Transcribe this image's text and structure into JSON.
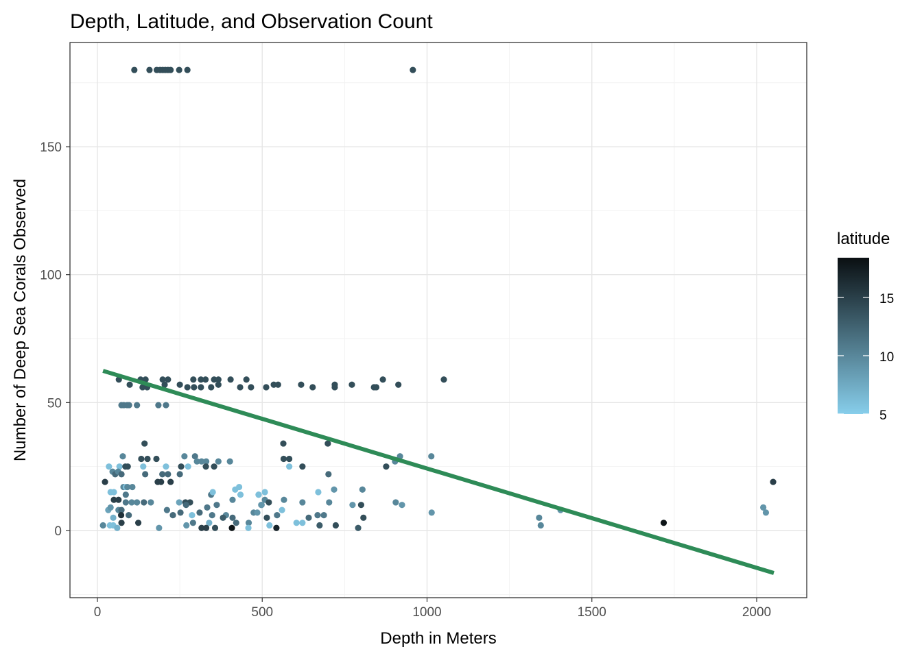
{
  "chart_data": {
    "type": "scatter",
    "title": "Depth, Latitude, and Observation Count",
    "xlabel": "Depth in Meters",
    "ylabel": "Number of Deep Sea Corals Observed",
    "xlim": [
      -80,
      2150
    ],
    "ylim": [
      -26,
      185
    ],
    "x_ticks": [
      0,
      500,
      1000,
      1500,
      2000
    ],
    "y_ticks": [
      0,
      50,
      100,
      150
    ],
    "grid": true,
    "legend": {
      "title": "latitude",
      "placement": "right",
      "ticks": [
        5,
        10,
        15
      ],
      "range": [
        5,
        18.4
      ],
      "low_color": "#87CEEB",
      "high_color": "#0A0F12"
    },
    "trend_line": {
      "color": "#2E8B57",
      "x": [
        17,
        2052
      ],
      "y": [
        62.4,
        -16.6
      ]
    },
    "points_columns": [
      "depth",
      "count",
      "latitude"
    ],
    "points": [
      [
        112,
        180,
        14
      ],
      [
        158,
        180,
        14
      ],
      [
        180,
        180,
        14
      ],
      [
        190,
        180,
        14
      ],
      [
        198,
        180,
        14
      ],
      [
        206,
        180,
        14
      ],
      [
        214,
        180,
        14
      ],
      [
        222,
        180,
        14
      ],
      [
        248,
        180,
        14
      ],
      [
        273,
        180,
        14
      ],
      [
        957,
        180,
        14
      ],
      [
        65,
        59,
        14
      ],
      [
        98,
        57,
        14
      ],
      [
        131,
        59,
        14
      ],
      [
        146,
        59,
        14
      ],
      [
        137,
        56,
        14
      ],
      [
        151,
        56,
        14
      ],
      [
        198,
        59,
        14
      ],
      [
        214,
        59,
        14
      ],
      [
        204,
        57,
        14
      ],
      [
        250,
        57,
        14
      ],
      [
        273,
        56,
        14
      ],
      [
        291,
        59,
        14
      ],
      [
        293,
        56,
        14
      ],
      [
        314,
        59,
        14
      ],
      [
        328,
        59,
        14
      ],
      [
        314,
        56,
        14
      ],
      [
        345,
        56,
        14
      ],
      [
        354,
        59,
        14
      ],
      [
        367,
        59,
        14
      ],
      [
        367,
        57,
        14
      ],
      [
        404,
        59,
        14
      ],
      [
        433,
        56,
        14
      ],
      [
        452,
        59,
        14
      ],
      [
        466,
        56,
        14
      ],
      [
        512,
        56,
        14
      ],
      [
        535,
        57,
        14
      ],
      [
        548,
        57,
        14
      ],
      [
        618,
        57,
        14
      ],
      [
        653,
        56,
        14
      ],
      [
        720,
        57,
        14
      ],
      [
        720,
        56,
        14
      ],
      [
        772,
        57,
        14
      ],
      [
        839,
        56,
        14
      ],
      [
        846,
        56,
        14
      ],
      [
        866,
        59,
        14
      ],
      [
        913,
        57,
        14
      ],
      [
        1051,
        59,
        14
      ],
      [
        73,
        49,
        11
      ],
      [
        80,
        49,
        11
      ],
      [
        90,
        49,
        11
      ],
      [
        96,
        49,
        11
      ],
      [
        120,
        49,
        11
      ],
      [
        185,
        49,
        11
      ],
      [
        208,
        49,
        11
      ],
      [
        143,
        34,
        14
      ],
      [
        77,
        29,
        10
      ],
      [
        133,
        28,
        14
      ],
      [
        152,
        28,
        14
      ],
      [
        179,
        28,
        14
      ],
      [
        35,
        25,
        6
      ],
      [
        67,
        25,
        6
      ],
      [
        85,
        25,
        14
      ],
      [
        92,
        25,
        14
      ],
      [
        139,
        25,
        6
      ],
      [
        208,
        25,
        6
      ],
      [
        254,
        25,
        14
      ],
      [
        275,
        25,
        6
      ],
      [
        264,
        29,
        10
      ],
      [
        296,
        29,
        11
      ],
      [
        302,
        27,
        10
      ],
      [
        316,
        27,
        10
      ],
      [
        330,
        27,
        10
      ],
      [
        329,
        25,
        14
      ],
      [
        354,
        25,
        14
      ],
      [
        367,
        27,
        10
      ],
      [
        402,
        27,
        10
      ],
      [
        46,
        23,
        10
      ],
      [
        54,
        22,
        12
      ],
      [
        63,
        23,
        10
      ],
      [
        73,
        22,
        12
      ],
      [
        145,
        22,
        12
      ],
      [
        197,
        22,
        12
      ],
      [
        214,
        22,
        12
      ],
      [
        250,
        22,
        12
      ],
      [
        23,
        19,
        15
      ],
      [
        183,
        19,
        15
      ],
      [
        193,
        19,
        15
      ],
      [
        222,
        19,
        15
      ],
      [
        564,
        34,
        14
      ],
      [
        699,
        34,
        14
      ],
      [
        565,
        28,
        14
      ],
      [
        582,
        28,
        14
      ],
      [
        582,
        25,
        6
      ],
      [
        622,
        25,
        14
      ],
      [
        701,
        22,
        12
      ],
      [
        876,
        25,
        14
      ],
      [
        903,
        27,
        10
      ],
      [
        918,
        29,
        10
      ],
      [
        1013,
        29,
        10
      ],
      [
        2050,
        19,
        15
      ],
      [
        40,
        15,
        6
      ],
      [
        50,
        15,
        6
      ],
      [
        79,
        17,
        10
      ],
      [
        86,
        17,
        6
      ],
      [
        91,
        17,
        10
      ],
      [
        106,
        17,
        10
      ],
      [
        86,
        14,
        11
      ],
      [
        345,
        14,
        11
      ],
      [
        350,
        15,
        6
      ],
      [
        418,
        16,
        6
      ],
      [
        430,
        17,
        6
      ],
      [
        434,
        14,
        6
      ],
      [
        489,
        14,
        6
      ],
      [
        50,
        12,
        15
      ],
      [
        64,
        12,
        15
      ],
      [
        86,
        11,
        11
      ],
      [
        104,
        11,
        10
      ],
      [
        120,
        11,
        10
      ],
      [
        141,
        11,
        12
      ],
      [
        162,
        11,
        10
      ],
      [
        248,
        11,
        8
      ],
      [
        267,
        11,
        14
      ],
      [
        281,
        11,
        14
      ],
      [
        269,
        10,
        12
      ],
      [
        410,
        12,
        10
      ],
      [
        362,
        10,
        11
      ],
      [
        333,
        9,
        11
      ],
      [
        498,
        10,
        10
      ],
      [
        33,
        8,
        8
      ],
      [
        40,
        9,
        9
      ],
      [
        64,
        8,
        10
      ],
      [
        73,
        8,
        12
      ],
      [
        211,
        8,
        11
      ],
      [
        252,
        7,
        12
      ],
      [
        229,
        6,
        12
      ],
      [
        72,
        6,
        16
      ],
      [
        95,
        6,
        12
      ],
      [
        287,
        6,
        6
      ],
      [
        310,
        7,
        12
      ],
      [
        348,
        6,
        11
      ],
      [
        390,
        6,
        10
      ],
      [
        474,
        7,
        10
      ],
      [
        381,
        5,
        13
      ],
      [
        410,
        5,
        12
      ],
      [
        48,
        5,
        7
      ],
      [
        73,
        3,
        15
      ],
      [
        124,
        3,
        15
      ],
      [
        290,
        3,
        11
      ],
      [
        339,
        3,
        7
      ],
      [
        421,
        3,
        12
      ],
      [
        459,
        3,
        10
      ],
      [
        17,
        2,
        10
      ],
      [
        38,
        2,
        6
      ],
      [
        48,
        2,
        6
      ],
      [
        60,
        1,
        7
      ],
      [
        187,
        1,
        9
      ],
      [
        270,
        2,
        9
      ],
      [
        316,
        1,
        15
      ],
      [
        330,
        1,
        15
      ],
      [
        357,
        1,
        14
      ],
      [
        408,
        1,
        18
      ],
      [
        458,
        1,
        6
      ],
      [
        489,
        14,
        6
      ],
      [
        508,
        15,
        6
      ],
      [
        508,
        12,
        10
      ],
      [
        520,
        11,
        14
      ],
      [
        497,
        10,
        9
      ],
      [
        566,
        12,
        10
      ],
      [
        622,
        11,
        10
      ],
      [
        670,
        15,
        6
      ],
      [
        718,
        16,
        9
      ],
      [
        804,
        16,
        10
      ],
      [
        703,
        11,
        10
      ],
      [
        774,
        10,
        9
      ],
      [
        800,
        10,
        14
      ],
      [
        905,
        11,
        10
      ],
      [
        924,
        10,
        9
      ],
      [
        1014,
        7,
        9
      ],
      [
        485,
        7,
        9
      ],
      [
        545,
        6,
        11
      ],
      [
        668,
        6,
        11
      ],
      [
        687,
        6,
        11
      ],
      [
        560,
        8,
        6
      ],
      [
        514,
        5,
        14
      ],
      [
        641,
        5,
        12
      ],
      [
        807,
        5,
        14
      ],
      [
        604,
        3,
        6
      ],
      [
        622,
        3,
        6
      ],
      [
        522,
        2,
        6
      ],
      [
        674,
        2,
        13
      ],
      [
        723,
        2,
        14
      ],
      [
        543,
        1,
        17
      ],
      [
        791,
        1,
        13
      ],
      [
        1340,
        5,
        10
      ],
      [
        1345,
        2,
        10
      ],
      [
        1405,
        8,
        9
      ],
      [
        1718,
        3,
        18
      ],
      [
        2020,
        9,
        9
      ],
      [
        2028,
        7,
        9
      ]
    ]
  }
}
